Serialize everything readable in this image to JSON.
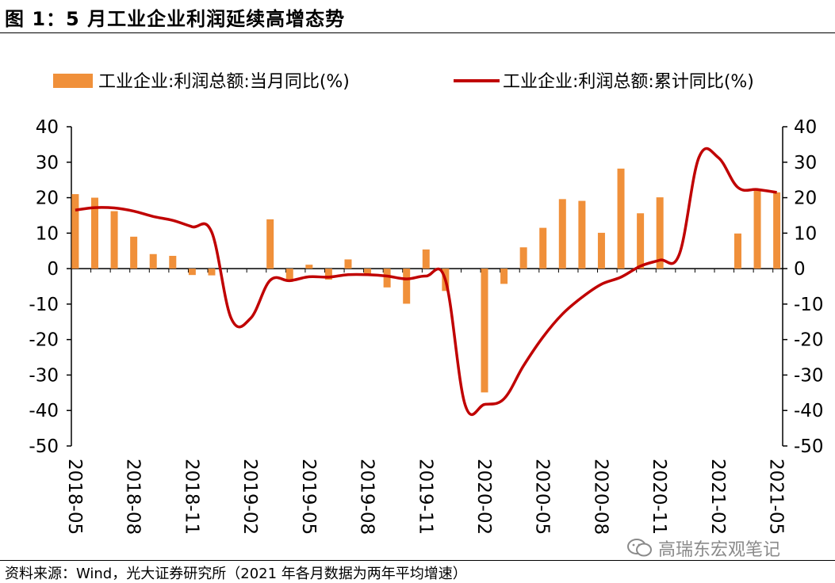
{
  "header": {
    "title": "图 1：5 月工业企业利润延续高增态势"
  },
  "footer": {
    "source": "资料来源：Wind，光大证券研究所（2021 年各月数据为两年平均增速）"
  },
  "watermark": {
    "text": "高瑞东宏观笔记",
    "icon": "wechat-icon"
  },
  "colors": {
    "bar": "#f0903a",
    "line": "#c00000",
    "axis": "#000000"
  },
  "chart_data": {
    "type": "bar",
    "legend_position": "top",
    "grid": false,
    "ylim": [
      -50,
      40
    ],
    "y_ticks": [
      "40",
      "30",
      "20",
      "10",
      "0",
      "-10",
      "-20",
      "-30",
      "-40",
      "-50"
    ],
    "x_tick_labels": [
      "2018-05",
      "2018-08",
      "2018-11",
      "2019-02",
      "2019-05",
      "2019-08",
      "2019-11",
      "2020-02",
      "2020-05",
      "2020-08",
      "2020-11",
      "2021-02",
      "2021-05"
    ],
    "categories": [
      "2018-05",
      "2018-06",
      "2018-07",
      "2018-08",
      "2018-09",
      "2018-10",
      "2018-11",
      "2018-12",
      "2019-01",
      "2019-02",
      "2019-03",
      "2019-04",
      "2019-05",
      "2019-06",
      "2019-07",
      "2019-08",
      "2019-09",
      "2019-10",
      "2019-11",
      "2019-12",
      "2020-01",
      "2020-02",
      "2020-03",
      "2020-04",
      "2020-05",
      "2020-06",
      "2020-07",
      "2020-08",
      "2020-09",
      "2020-10",
      "2020-11",
      "2020-12",
      "2021-01",
      "2021-02",
      "2021-03",
      "2021-04",
      "2021-05"
    ],
    "series": [
      {
        "name": "工业企业:利润总额:当月同比(%)",
        "kind": "bar",
        "values": [
          21,
          20,
          16.2,
          9,
          4.1,
          3.6,
          -1.8,
          -1.9,
          null,
          null,
          13.9,
          -3.7,
          1.1,
          -3.1,
          2.6,
          -2,
          -5.3,
          -9.9,
          5.4,
          -6.3,
          null,
          -34.9,
          -4.3,
          6,
          11.5,
          19.6,
          19.1,
          10.1,
          28.2,
          15.6,
          20.1,
          null,
          null,
          null,
          9.9,
          22,
          21.5
        ]
      },
      {
        "name": "工业企业:利润总额:累计同比(%)",
        "kind": "line",
        "values": [
          16.5,
          17.2,
          17.1,
          16.2,
          14.7,
          13.6,
          11.8,
          10.3,
          -14,
          -14,
          -3.3,
          -3.4,
          -2.3,
          -2.4,
          -1.7,
          -1.7,
          -2.1,
          -2.9,
          -2.1,
          -3.3,
          -38.3,
          -38.3,
          -36.7,
          -27.4,
          -19.3,
          -12.8,
          -8.1,
          -4.4,
          -2.4,
          0.7,
          2.4,
          4.1,
          31.3,
          31.3,
          22.9,
          22.3,
          21.5
        ]
      }
    ]
  }
}
